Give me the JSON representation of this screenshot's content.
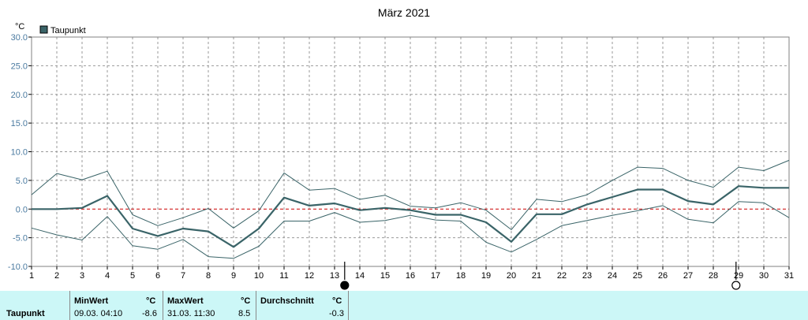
{
  "chart_data": {
    "type": "line",
    "title": "März 2021",
    "ylabel": "°C",
    "legend": "Taupunkt",
    "legend_position": "top-left",
    "x": [
      1,
      2,
      3,
      4,
      5,
      6,
      7,
      8,
      9,
      10,
      11,
      12,
      13,
      14,
      15,
      16,
      17,
      18,
      19,
      20,
      21,
      22,
      23,
      24,
      25,
      26,
      27,
      28,
      29,
      30,
      31
    ],
    "xlim": [
      1,
      31
    ],
    "ylim": [
      -10,
      30
    ],
    "yticks": [
      "30.0",
      "25.0",
      "20.0",
      "15.0",
      "10.0",
      "5.0",
      "0.0",
      "-5.0",
      "-10.0"
    ],
    "grid": true,
    "series": [
      {
        "name": "Taupunkt",
        "color": "#3a6468",
        "values": [
          0.0,
          0.0,
          0.2,
          2.3,
          -3.4,
          -4.7,
          -3.4,
          -3.9,
          -6.6,
          -3.4,
          2.0,
          0.6,
          1.0,
          -0.2,
          0.2,
          -0.2,
          -1.0,
          -1.0,
          -2.3,
          -5.7,
          -0.9,
          -0.9,
          0.8,
          2.1,
          3.4,
          3.4,
          1.4,
          0.8,
          4.0,
          3.7,
          3.7
        ]
      },
      {
        "color": "#3a6468",
        "values": [
          2.5,
          6.2,
          5.1,
          6.6,
          -1.0,
          -2.9,
          -1.5,
          0.1,
          -3.3,
          -0.3,
          6.3,
          3.3,
          3.6,
          1.7,
          2.4,
          0.5,
          0.2,
          1.1,
          -0.2,
          -3.6,
          1.7,
          1.3,
          2.5,
          5.0,
          7.3,
          7.1,
          5.0,
          3.8,
          7.3,
          6.7,
          8.5
        ]
      },
      {
        "color": "#3a6468",
        "values": [
          -3.3,
          -4.5,
          -5.4,
          -1.3,
          -6.4,
          -7.0,
          -5.3,
          -8.3,
          -8.6,
          -6.5,
          -2.1,
          -2.1,
          -0.6,
          -2.3,
          -2.0,
          -1.1,
          -1.9,
          -2.1,
          -5.8,
          -7.5,
          -5.3,
          -2.9,
          -2.0,
          -1.1,
          -0.3,
          0.6,
          -1.8,
          -2.4,
          1.3,
          1.1,
          -1.5
        ]
      }
    ],
    "reference_line": {
      "y": 0,
      "color": "#cc0000",
      "style": "dashed"
    },
    "moon_markers": [
      {
        "day": 13.4,
        "phase": "new-moon"
      },
      {
        "day": 28.9,
        "phase": "full-moon"
      }
    ]
  },
  "stats": {
    "row_label": "Taupunkt",
    "min": {
      "header": "MinWert",
      "unit": "°C",
      "datetime": "09.03.  04:10",
      "value": "-8.6"
    },
    "max": {
      "header": "MaxWert",
      "unit": "°C",
      "datetime": "31.03.  11:30",
      "value": "8.5"
    },
    "avg": {
      "header": "Durchschnitt",
      "unit": "°C",
      "value": "-0.3"
    }
  }
}
